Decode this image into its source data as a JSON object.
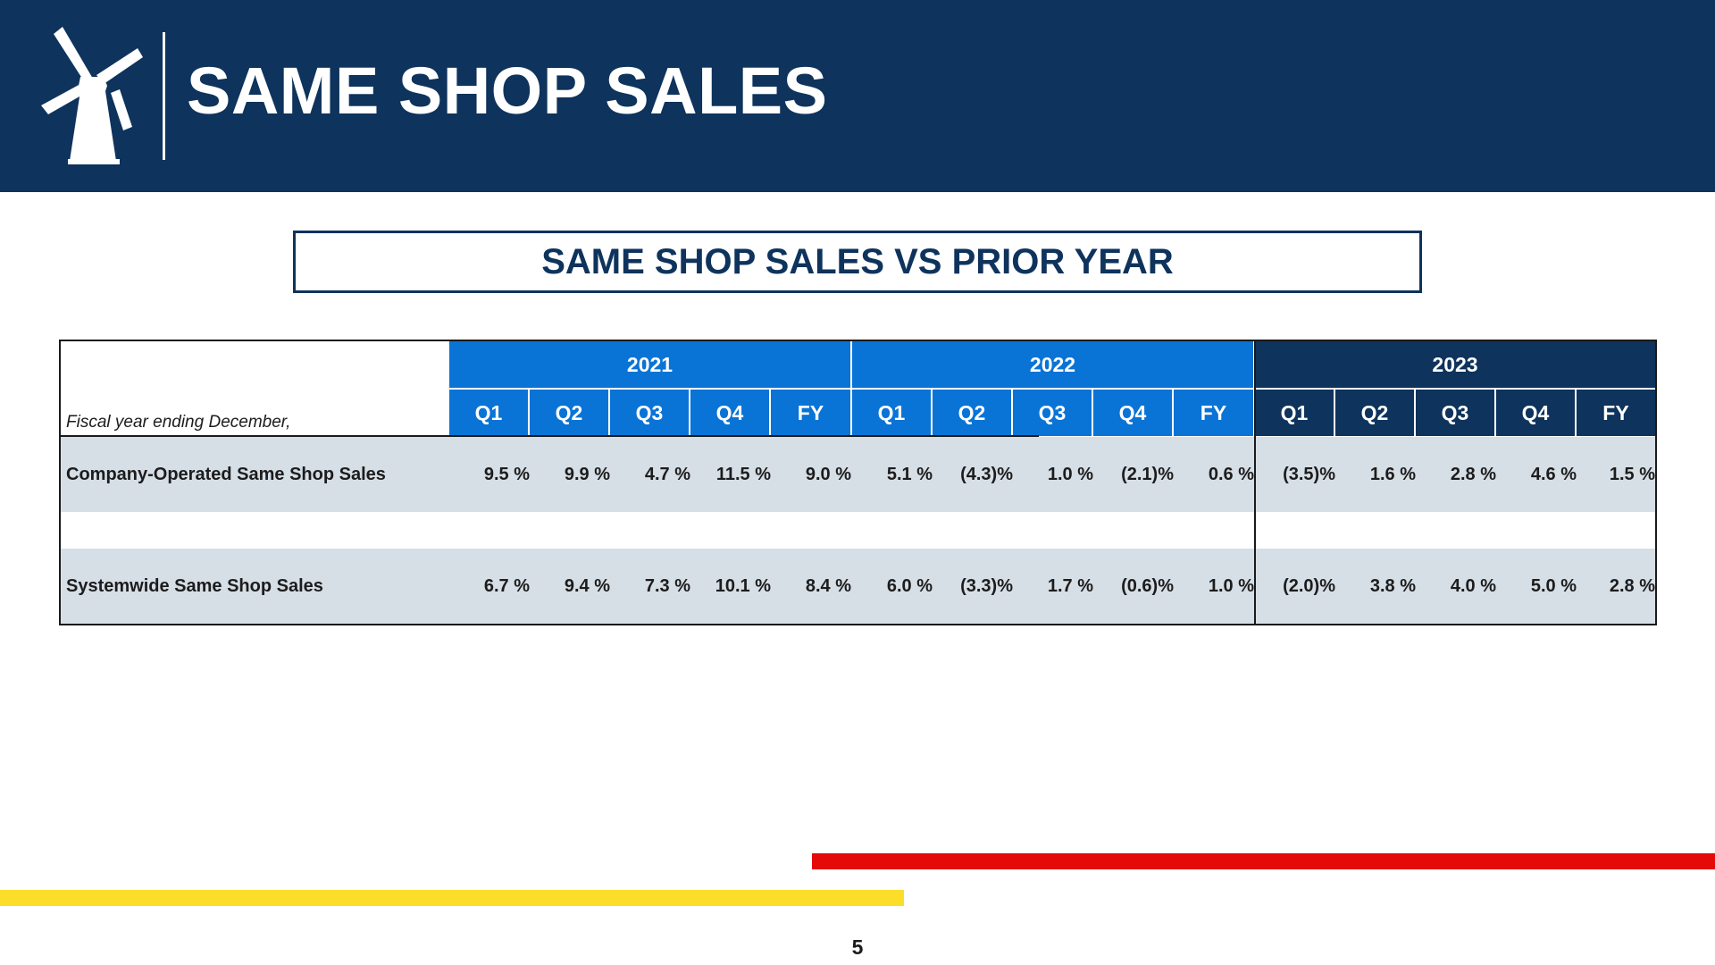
{
  "header": {
    "title": "SAME SHOP SALES",
    "background_color": "#0e335c",
    "logo_icon": "windmill-icon"
  },
  "subtitle": "SAME SHOP SALES VS PRIOR YEAR",
  "table": {
    "fiscal_label": "Fiscal year ending December,",
    "years": [
      {
        "label": "2021",
        "color": "#0a73d6"
      },
      {
        "label": "2022",
        "color": "#0a73d6"
      },
      {
        "label": "2023",
        "color": "#0e335c"
      }
    ],
    "periods": [
      "Q1",
      "Q2",
      "Q3",
      "Q4",
      "FY",
      "Q1",
      "Q2",
      "Q3",
      "Q4",
      "FY",
      "Q1",
      "Q2",
      "Q3",
      "Q4",
      "FY"
    ],
    "rows": [
      {
        "label": "Company-Operated Same Shop Sales",
        "values": [
          "9.5 %",
          "9.9 %",
          "4.7 %",
          "11.5 %",
          "9.0 %",
          "5.1 %",
          "(4.3)%",
          "1.0 %",
          "(2.1)%",
          "0.6 %",
          "(3.5)%",
          "1.6 %",
          "2.8 %",
          "4.6 %",
          "1.5 %"
        ]
      },
      {
        "label": "Systemwide Same Shop Sales",
        "values": [
          "6.7 %",
          "9.4 %",
          "7.3 %",
          "10.1 %",
          "8.4 %",
          "6.0 %",
          "(3.3)%",
          "1.7 %",
          "(0.6)%",
          "1.0 %",
          "(2.0)%",
          "3.8 %",
          "4.0 %",
          "5.0 %",
          "2.8 %"
        ]
      }
    ]
  },
  "colors": {
    "red_bar": "#e50a0a",
    "yellow_bar": "#fbdd2a",
    "row_shade": "#d6dee6"
  },
  "page_number": "5"
}
